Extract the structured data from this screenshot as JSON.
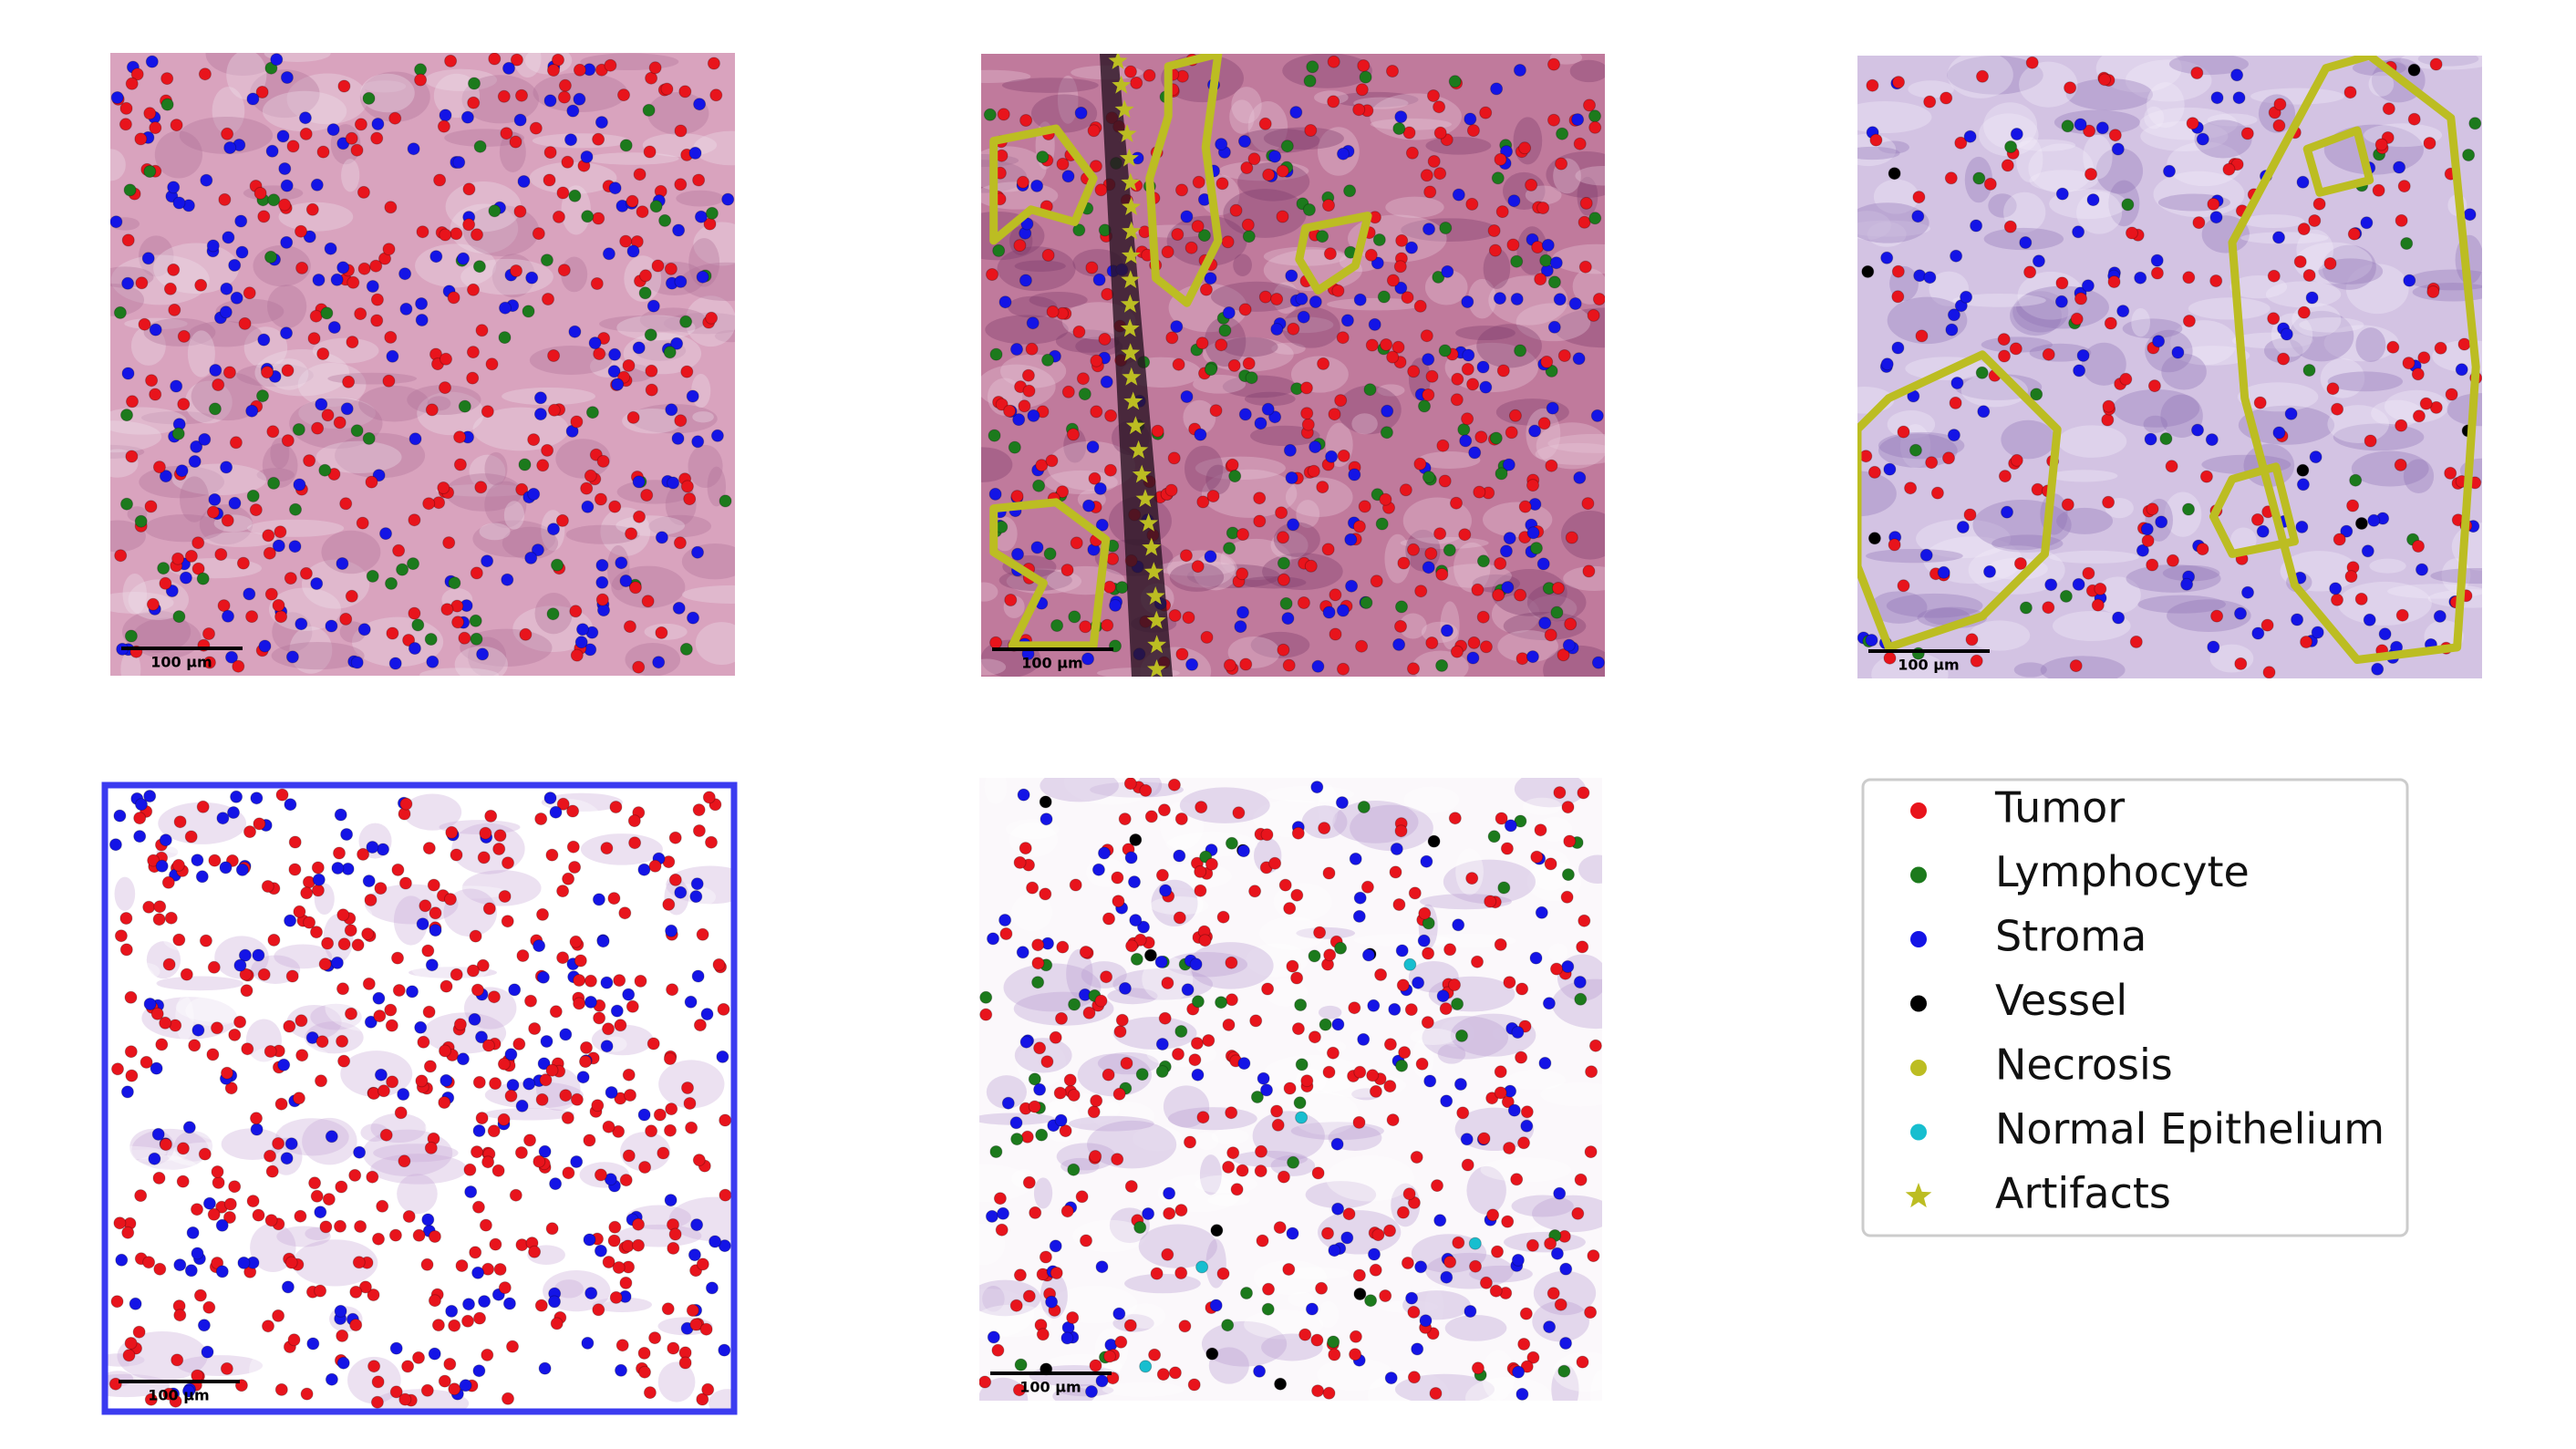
{
  "panels": [
    {
      "scale_bar": "100 µm"
    },
    {
      "scale_bar": "100 µm"
    },
    {
      "scale_bar": "100 µm"
    },
    {
      "scale_bar": "100 µm"
    },
    {
      "scale_bar": "100 µm"
    }
  ],
  "legend": [
    {
      "label": "Tumor",
      "color": "#e8141c",
      "marker": "circle"
    },
    {
      "label": "Lymphocyte",
      "color": "#1c7a1c",
      "marker": "circle"
    },
    {
      "label": "Stroma",
      "color": "#1414e6",
      "marker": "circle"
    },
    {
      "label": "Vessel",
      "color": "#000000",
      "marker": "circle"
    },
    {
      "label": "Necrosis",
      "color": "#bcbd22",
      "marker": "circle"
    },
    {
      "label": "Normal Epithelium",
      "color": "#17becf",
      "marker": "circle"
    },
    {
      "label": "Artifacts",
      "color": "#bcbd22",
      "marker": "star"
    }
  ]
}
